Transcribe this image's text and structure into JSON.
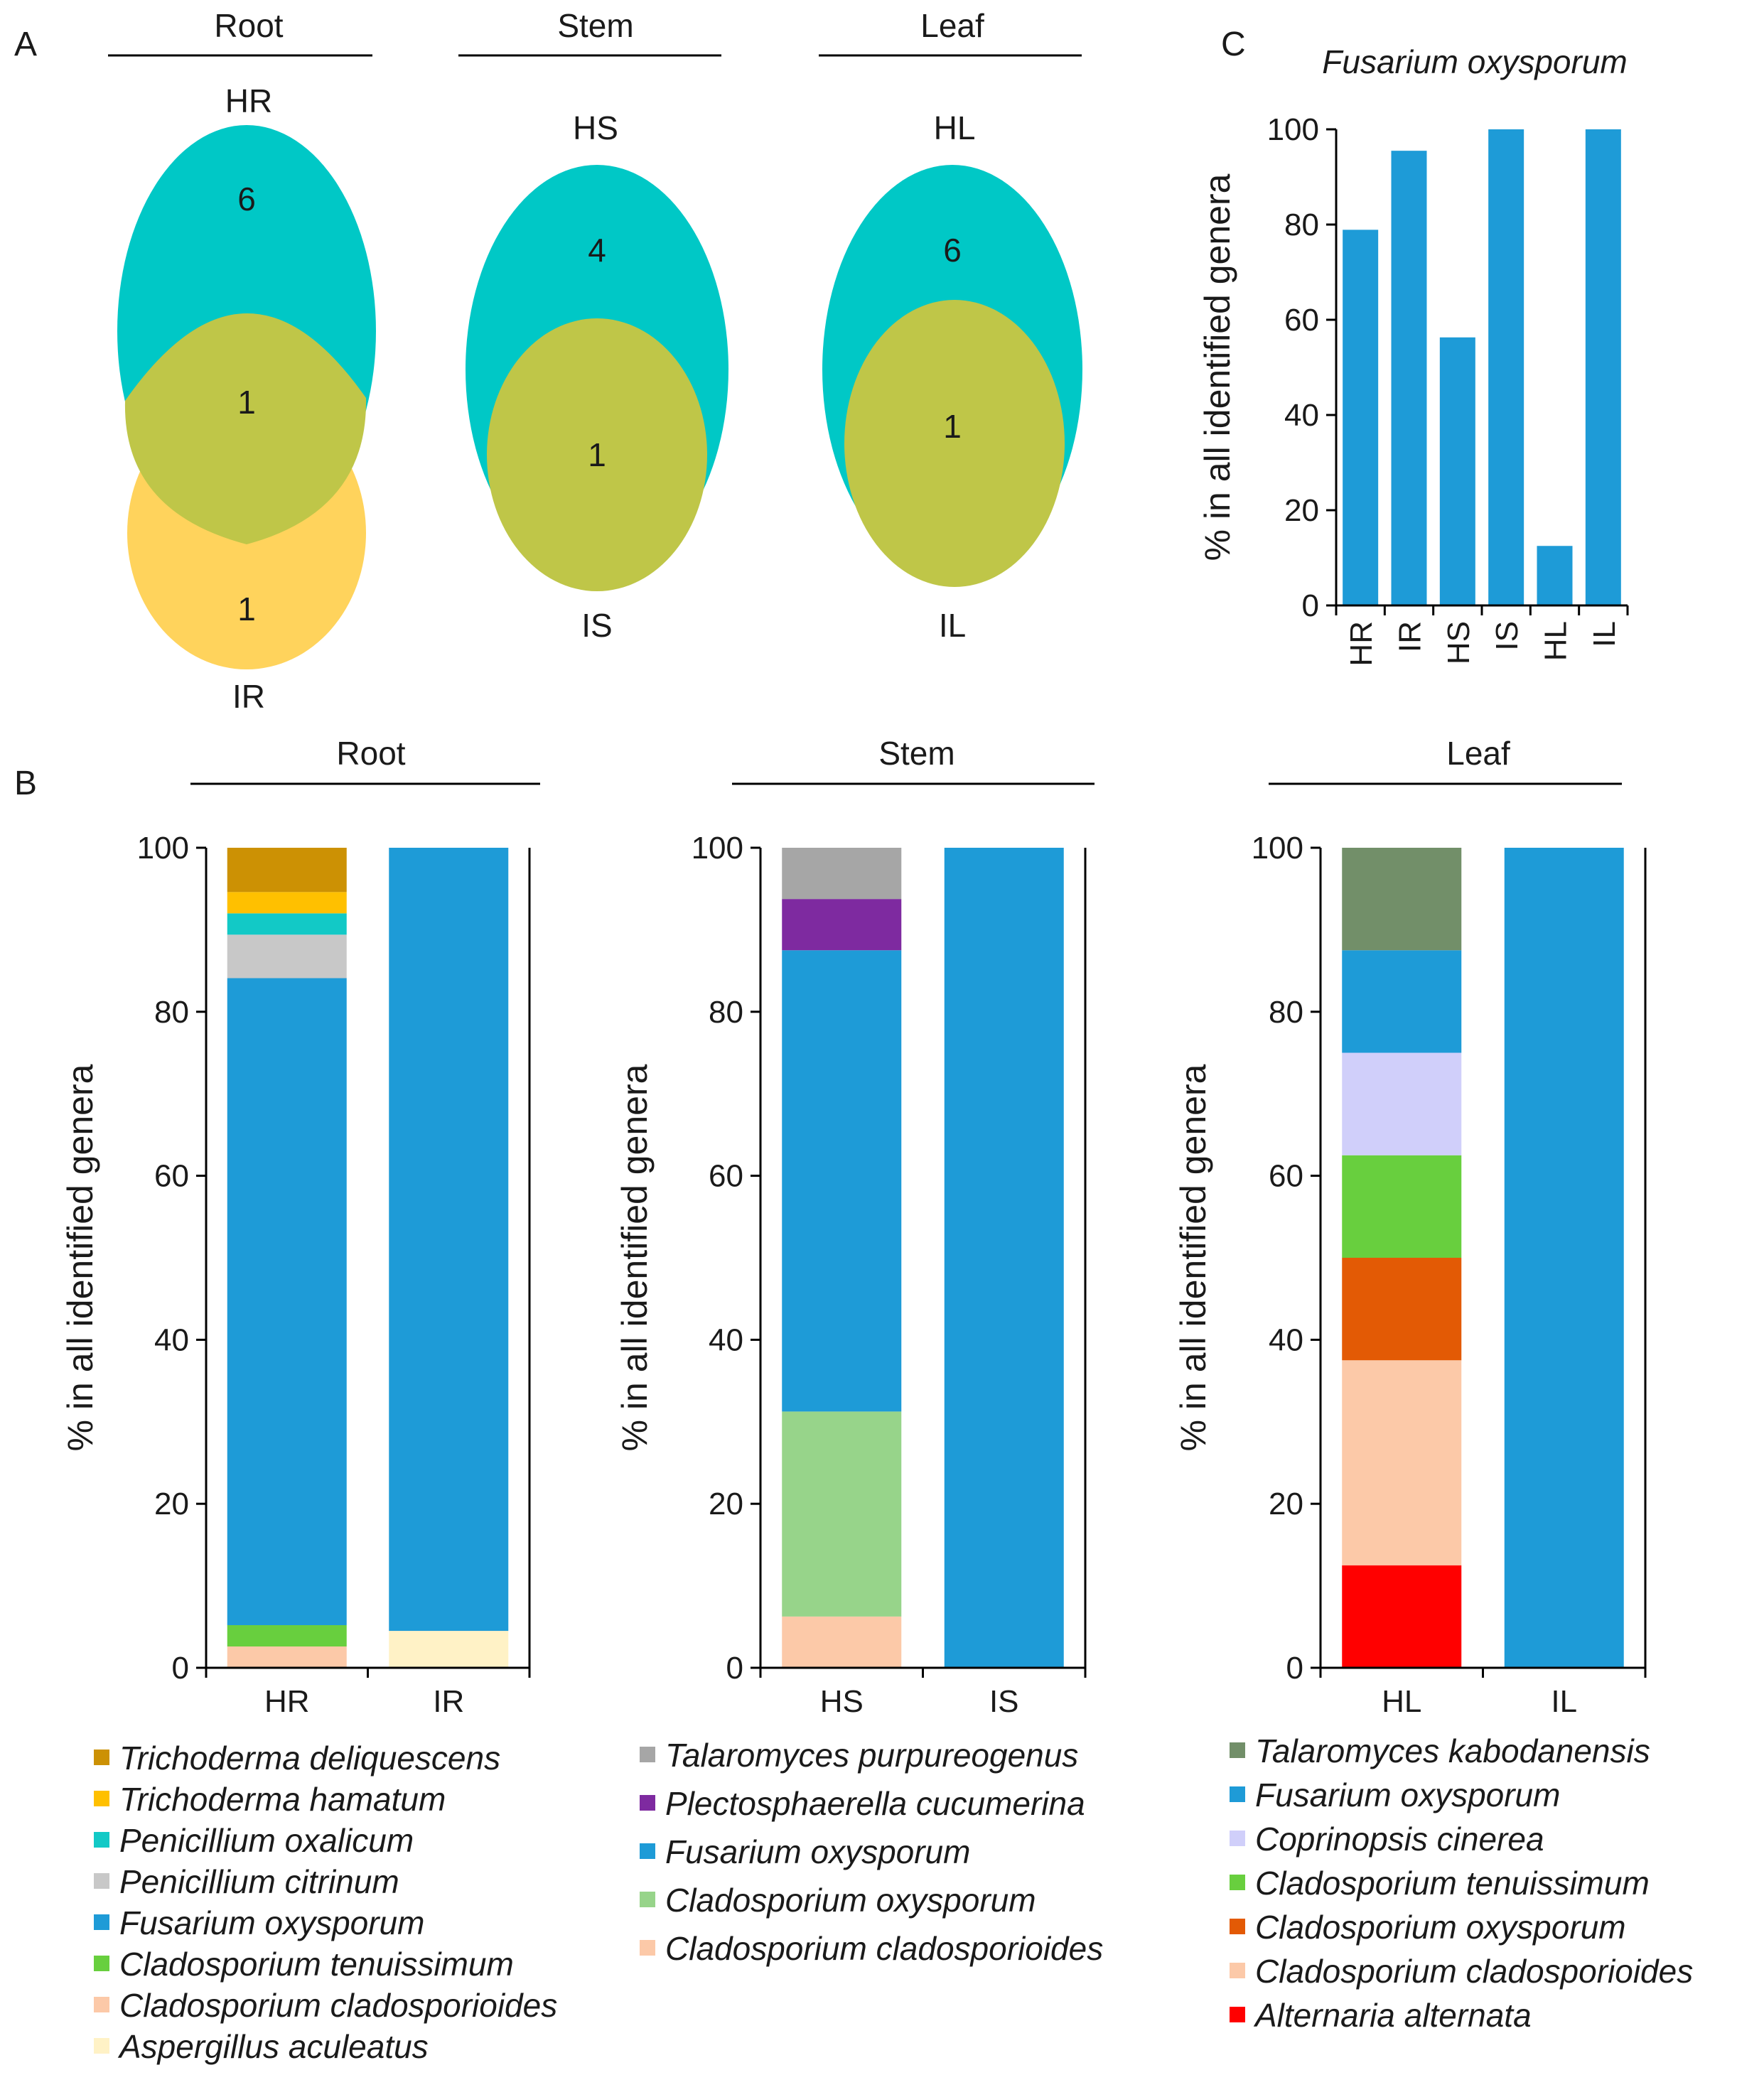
{
  "panel_labels": {
    "a": "A",
    "b": "B",
    "c": "C"
  },
  "colors": {
    "healthy_venn": "#00c8c6",
    "infected_venn": "#ffd35c",
    "overlap_venn": "#bfc648",
    "bar_fusarium": "#1e9bd7",
    "axis": "#000000"
  },
  "venn": [
    {
      "tissue": "Root",
      "healthy_label": "HR",
      "infected_label": "IR",
      "healthy_only": "6",
      "shared": "1",
      "infected_only": "1"
    },
    {
      "tissue": "Stem",
      "healthy_label": "HS",
      "infected_label": "IS",
      "healthy_only": "4",
      "shared": "1",
      "infected_only": ""
    },
    {
      "tissue": "Leaf",
      "healthy_label": "HL",
      "infected_label": "IL",
      "healthy_only": "6",
      "shared": "1",
      "infected_only": ""
    }
  ],
  "chart_data": [
    {
      "id": "C",
      "type": "bar",
      "title": "Fusarium oxysporum",
      "ylabel": "% in all identified genera",
      "xlabel": "",
      "ylim": [
        0,
        100
      ],
      "yticks": [
        0,
        20,
        40,
        60,
        80,
        100
      ],
      "categories": [
        "HR",
        "IR",
        "HS",
        "IS",
        "HL",
        "IL"
      ],
      "values": [
        78.9,
        95.5,
        56.3,
        100,
        12.5,
        100
      ],
      "color": "#1e9bd7"
    },
    {
      "id": "B-root",
      "type": "bar",
      "stacked": true,
      "title": "Root",
      "ylabel": "% in all identified genera",
      "ylim": [
        0,
        100
      ],
      "yticks": [
        0,
        20,
        40,
        60,
        80,
        100
      ],
      "categories": [
        "HR",
        "IR"
      ],
      "series": [
        {
          "name": "Aspergillus aculeatus",
          "color": "#fff2c6",
          "values": [
            0,
            4.5
          ]
        },
        {
          "name": "Cladosporium cladosporioides",
          "color": "#fcc9a8",
          "values": [
            2.6,
            0
          ]
        },
        {
          "name": "Cladosporium tenuissimum",
          "color": "#68cf3e",
          "values": [
            2.6,
            0
          ]
        },
        {
          "name": "Fusarium oxysporum",
          "color": "#1e9bd7",
          "values": [
            78.9,
            95.5
          ]
        },
        {
          "name": "Penicillium citrinum",
          "color": "#c8c8c8",
          "values": [
            5.3,
            0
          ]
        },
        {
          "name": "Penicillium oxalicum",
          "color": "#12c9c6",
          "values": [
            2.6,
            0
          ]
        },
        {
          "name": "Trichoderma hamatum",
          "color": "#ffc000",
          "values": [
            2.6,
            0
          ]
        },
        {
          "name": "Trichoderma deliquescens",
          "color": "#cc9104",
          "values": [
            5.4,
            0
          ]
        }
      ],
      "legend_order": [
        "Trichoderma deliquescens",
        "Trichoderma hamatum",
        "Penicillium oxalicum",
        "Penicillium citrinum",
        "Fusarium oxysporum",
        "Cladosporium tenuissimum",
        "Cladosporium cladosporioides",
        "Aspergillus aculeatus"
      ]
    },
    {
      "id": "B-stem",
      "type": "bar",
      "stacked": true,
      "title": "Stem",
      "ylabel": "% in all identified genera",
      "ylim": [
        0,
        100
      ],
      "yticks": [
        0,
        20,
        40,
        60,
        80,
        100
      ],
      "categories": [
        "HS",
        "IS"
      ],
      "series": [
        {
          "name": "Cladosporium cladosporioides",
          "color": "#fcc9a8",
          "values": [
            6.25,
            0
          ]
        },
        {
          "name": "Cladosporium oxysporum",
          "color": "#97d48a",
          "values": [
            25,
            0
          ]
        },
        {
          "name": "Fusarium oxysporum",
          "color": "#1e9bd7",
          "values": [
            56.25,
            100
          ]
        },
        {
          "name": "Plectosphaerella cucumerina",
          "color": "#7e2aa0",
          "values": [
            6.25,
            0
          ]
        },
        {
          "name": "Talaromyces purpureogenus",
          "color": "#a6a6a6",
          "values": [
            6.25,
            0
          ]
        }
      ],
      "legend_order": [
        "Talaromyces purpureogenus",
        "Plectosphaerella cucumerina",
        "Fusarium oxysporum",
        "Cladosporium oxysporum",
        "Cladosporium cladosporioides"
      ]
    },
    {
      "id": "B-leaf",
      "type": "bar",
      "stacked": true,
      "title": "Leaf",
      "ylabel": "% in all identified genera",
      "ylim": [
        0,
        100
      ],
      "yticks": [
        0,
        20,
        40,
        60,
        80,
        100
      ],
      "categories": [
        "HL",
        "IL"
      ],
      "series": [
        {
          "name": "Alternaria alternata",
          "color": "#ff0000",
          "values": [
            12.5,
            0
          ]
        },
        {
          "name": "Cladosporium cladosporioides",
          "color": "#fcc9a8",
          "values": [
            25,
            0
          ]
        },
        {
          "name": "Cladosporium oxysporum",
          "color": "#e35a05",
          "values": [
            12.5,
            0
          ]
        },
        {
          "name": "Cladosporium tenuissimum",
          "color": "#68cf3e",
          "values": [
            12.5,
            0
          ]
        },
        {
          "name": "Coprinopsis cinerea",
          "color": "#d0cffa",
          "values": [
            12.5,
            0
          ]
        },
        {
          "name": "Fusarium oxysporum",
          "color": "#1e9bd7",
          "values": [
            12.5,
            100
          ]
        },
        {
          "name": "Talaromyces kabodanensis",
          "color": "#728f69",
          "values": [
            12.5,
            0
          ]
        }
      ],
      "legend_order": [
        "Talaromyces kabodanensis",
        "Fusarium oxysporum",
        "Coprinopsis cinerea",
        "Cladosporium tenuissimum",
        "Cladosporium oxysporum",
        "Cladosporium cladosporioides",
        "Alternaria alternata"
      ]
    }
  ]
}
